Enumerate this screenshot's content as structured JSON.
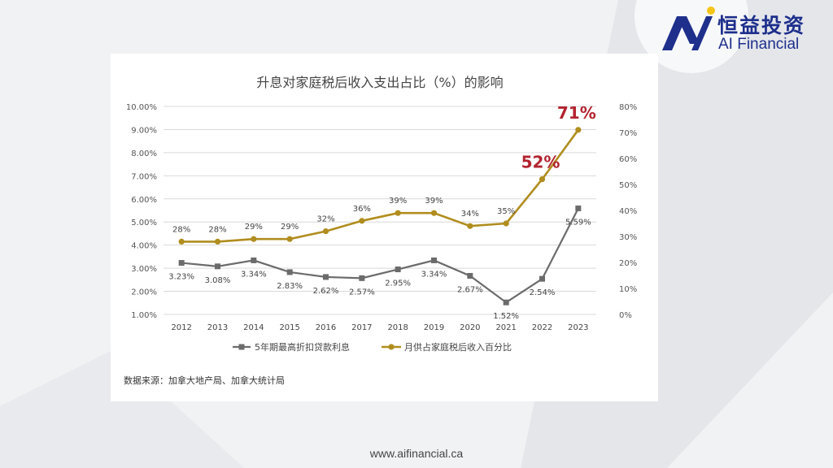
{
  "brand": {
    "name_cn": "恒益投资",
    "name_en": "AI Financial",
    "url": "www.aifinancial.ca"
  },
  "source": "数据来源：加拿大地产局、加拿大统计局",
  "colors": {
    "rate": "#6b6b6b",
    "share": "#b08d1e",
    "callout": "#b2232f",
    "logo": "#1e2f8c",
    "logo_accent": "#f5c518"
  },
  "chart_data": {
    "type": "line",
    "title": "升息对家庭税后收入支出占比（%）的影响",
    "categories": [
      "2012",
      "2013",
      "2014",
      "2015",
      "2016",
      "2017",
      "2018",
      "2019",
      "2020",
      "2021",
      "2022",
      "2023"
    ],
    "y_left": {
      "ylim": [
        1,
        10
      ],
      "ticks": [
        "1.00%",
        "2.00%",
        "3.00%",
        "4.00%",
        "5.00%",
        "6.00%",
        "7.00%",
        "8.00%",
        "9.00%",
        "10.00%"
      ]
    },
    "y_right": {
      "ylim": [
        0,
        80
      ],
      "ticks": [
        "0%",
        "10%",
        "20%",
        "30%",
        "40%",
        "50%",
        "60%",
        "70%",
        "80%"
      ]
    },
    "series": [
      {
        "name": "5年期最高折扣贷款利息",
        "axis": "left",
        "marker": "square",
        "values": [
          3.23,
          3.08,
          3.34,
          2.83,
          2.62,
          2.57,
          2.95,
          3.34,
          2.67,
          1.52,
          2.54,
          5.59
        ],
        "labels": [
          "3.23%",
          "3.08%",
          "3.34%",
          "2.83%",
          "2.62%",
          "2.57%",
          "2.95%",
          "3.34%",
          "2.67%",
          "1.52%",
          "2.54%",
          "5.59%"
        ]
      },
      {
        "name": "月供占家庭税后收入百分比",
        "axis": "right",
        "marker": "circle",
        "values": [
          28,
          28,
          29,
          29,
          32,
          36,
          39,
          39,
          34,
          35,
          52,
          71
        ],
        "labels": [
          "28%",
          "28%",
          "29%",
          "29%",
          "32%",
          "36%",
          "39%",
          "39%",
          "34%",
          "35%",
          "52%",
          "71%"
        ]
      }
    ],
    "callouts": [
      {
        "index": 10,
        "text": "52%"
      },
      {
        "index": 11,
        "text": "71%"
      }
    ],
    "legend": "bottom"
  }
}
